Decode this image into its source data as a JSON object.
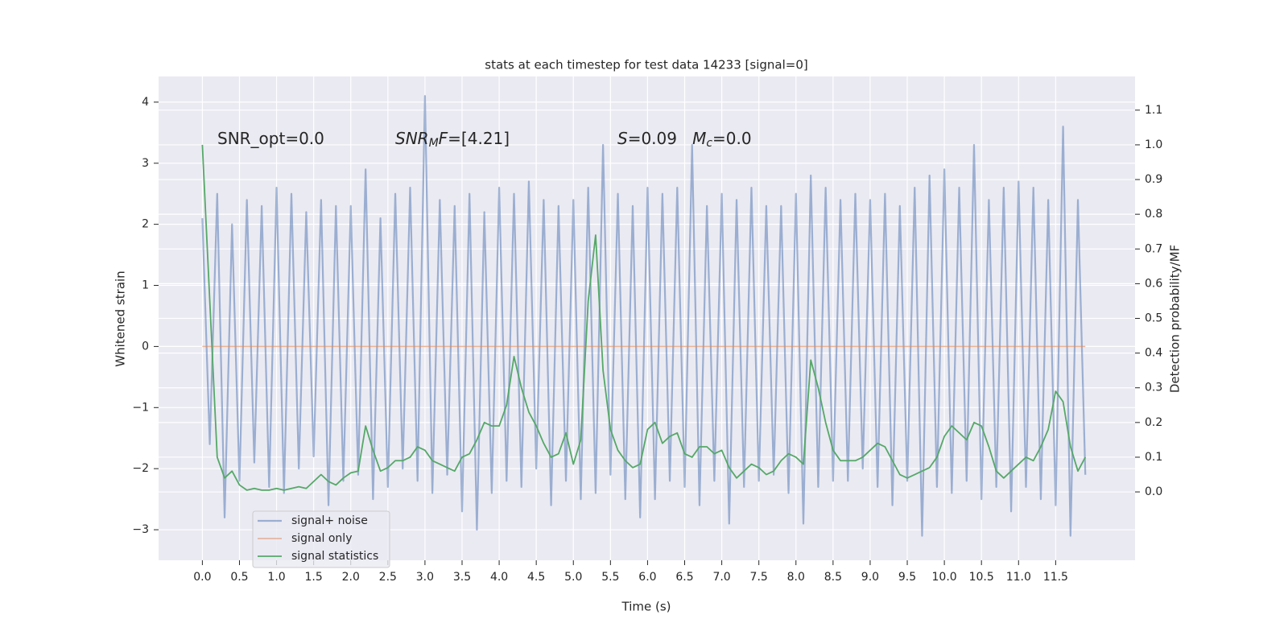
{
  "chart_data": {
    "type": "line",
    "title": "stats at each timestep for test data 14233 [signal=0]",
    "x_label": "Time (s)",
    "y_label": "Whitened strain",
    "y2_label": "Detection probability/MF",
    "annotations": [
      {
        "segments": [
          {
            "text": "SNR_opt=0.0",
            "style": "normal"
          }
        ]
      },
      {
        "segments": [
          {
            "text": "SNR",
            "style": "italic"
          },
          {
            "text": "M",
            "style": "sub"
          },
          {
            "text": "F",
            "style": "italic"
          },
          {
            "text": "=[4.21]",
            "style": "normal"
          }
        ]
      },
      {
        "segments": [
          {
            "text": "S",
            "style": "italic"
          },
          {
            "text": "=0.09   ",
            "style": "normal"
          },
          {
            "text": "M",
            "style": "italic"
          },
          {
            "text": "c",
            "style": "sub"
          },
          {
            "text": "=0.0",
            "style": "normal"
          }
        ]
      }
    ],
    "x": [
      0,
      0.1,
      0.2,
      0.3,
      0.4,
      0.5,
      0.6,
      0.7,
      0.8,
      0.9,
      1,
      1.1,
      1.2,
      1.3,
      1.4,
      1.5,
      1.6,
      1.7,
      1.8,
      1.9,
      2,
      2.1,
      2.2,
      2.3,
      2.4,
      2.5,
      2.6,
      2.7,
      2.8,
      2.9,
      3,
      3.1,
      3.2,
      3.3,
      3.4,
      3.5,
      3.6,
      3.7,
      3.8,
      3.9,
      4,
      4.1,
      4.2,
      4.3,
      4.4,
      4.5,
      4.6,
      4.7,
      4.8,
      4.9,
      5,
      5.1,
      5.2,
      5.3,
      5.4,
      5.5,
      5.6,
      5.7,
      5.8,
      5.9,
      6,
      6.1,
      6.2,
      6.3,
      6.4,
      6.5,
      6.6,
      6.7,
      6.8,
      6.9,
      7,
      7.1,
      7.2,
      7.3,
      7.4,
      7.5,
      7.6,
      7.7,
      7.8,
      7.9,
      8,
      8.1,
      8.2,
      8.3,
      8.4,
      8.5,
      8.6,
      8.7,
      8.8,
      8.9,
      9,
      9.1,
      9.2,
      9.3,
      9.4,
      9.5,
      9.6,
      9.7,
      9.8,
      9.9,
      10,
      10.1,
      10.2,
      10.3,
      10.4,
      10.5,
      10.6,
      10.7,
      10.8,
      10.9,
      11,
      11.1,
      11.2,
      11.3,
      11.4,
      11.5,
      11.6,
      11.7,
      11.8,
      11.9
    ],
    "series": [
      {
        "name": "signal+ noise",
        "color": "#4c72b0",
        "axis": "y",
        "values": [
          2.1,
          -1.6,
          2.5,
          -2.8,
          2.0,
          -2.2,
          2.4,
          -1.9,
          2.3,
          -2.3,
          2.6,
          -2.4,
          2.5,
          -2.0,
          2.2,
          -1.8,
          2.4,
          -2.6,
          2.3,
          -2.2,
          2.3,
          -2.1,
          2.9,
          -2.5,
          2.1,
          -2.3,
          2.5,
          -2.0,
          2.6,
          -2.2,
          4.1,
          -2.4,
          2.4,
          -2.1,
          2.3,
          -2.7,
          2.5,
          -3.0,
          2.2,
          -2.4,
          2.6,
          -2.2,
          2.5,
          -2.3,
          2.7,
          -2.0,
          2.4,
          -2.6,
          2.3,
          -2.2,
          2.4,
          -2.5,
          2.6,
          -2.4,
          3.3,
          -2.1,
          2.5,
          -2.5,
          2.3,
          -2.8,
          2.6,
          -2.5,
          2.5,
          -2.2,
          2.6,
          -2.3,
          3.3,
          -2.6,
          2.3,
          -2.2,
          2.5,
          -2.9,
          2.4,
          -2.3,
          2.6,
          -2.2,
          2.3,
          -2.1,
          2.3,
          -2.4,
          2.5,
          -2.9,
          2.8,
          -2.3,
          2.6,
          -2.2,
          2.4,
          -2.2,
          2.5,
          -2.0,
          2.4,
          -2.3,
          2.5,
          -2.6,
          2.3,
          -2.2,
          2.6,
          -3.1,
          2.8,
          -2.3,
          2.9,
          -2.4,
          2.6,
          -2.2,
          3.3,
          -2.5,
          2.4,
          -2.3,
          2.6,
          -2.7,
          2.7,
          -2.3,
          2.6,
          -2.5,
          2.4,
          -2.6,
          3.6,
          -3.1,
          2.4,
          -2.1
        ]
      },
      {
        "name": "signal only",
        "color": "#dd8452",
        "axis": "y",
        "values": [
          0,
          0,
          0,
          0,
          0,
          0,
          0,
          0,
          0,
          0,
          0,
          0,
          0,
          0,
          0,
          0,
          0,
          0,
          0,
          0,
          0,
          0,
          0,
          0,
          0,
          0,
          0,
          0,
          0,
          0,
          0,
          0,
          0,
          0,
          0,
          0,
          0,
          0,
          0,
          0,
          0,
          0,
          0,
          0,
          0,
          0,
          0,
          0,
          0,
          0,
          0,
          0,
          0,
          0,
          0,
          0,
          0,
          0,
          0,
          0,
          0,
          0,
          0,
          0,
          0,
          0,
          0,
          0,
          0,
          0,
          0,
          0,
          0,
          0,
          0,
          0,
          0,
          0,
          0,
          0,
          0,
          0,
          0,
          0,
          0,
          0,
          0,
          0,
          0,
          0,
          0,
          0,
          0,
          0,
          0,
          0,
          0,
          0,
          0,
          0,
          0,
          0,
          0,
          0,
          0,
          0,
          0,
          0,
          0,
          0,
          0,
          0,
          0,
          0,
          0,
          0,
          0,
          0,
          0,
          0
        ]
      },
      {
        "name": "signal statistics",
        "color": "#55a868",
        "axis": "y2",
        "values": [
          1.0,
          0.55,
          0.1,
          0.04,
          0.06,
          0.02,
          0.005,
          0.01,
          0.005,
          0.005,
          0.01,
          0.005,
          0.01,
          0.015,
          0.01,
          0.03,
          0.05,
          0.03,
          0.02,
          0.04,
          0.055,
          0.06,
          0.19,
          0.12,
          0.06,
          0.07,
          0.09,
          0.09,
          0.1,
          0.13,
          0.12,
          0.09,
          0.08,
          0.07,
          0.06,
          0.1,
          0.11,
          0.15,
          0.2,
          0.19,
          0.19,
          0.25,
          0.39,
          0.3,
          0.23,
          0.19,
          0.14,
          0.1,
          0.11,
          0.17,
          0.08,
          0.15,
          0.55,
          0.74,
          0.35,
          0.18,
          0.12,
          0.09,
          0.07,
          0.08,
          0.18,
          0.2,
          0.14,
          0.16,
          0.17,
          0.11,
          0.1,
          0.13,
          0.13,
          0.11,
          0.12,
          0.07,
          0.04,
          0.06,
          0.08,
          0.07,
          0.05,
          0.06,
          0.09,
          0.11,
          0.1,
          0.08,
          0.38,
          0.3,
          0.2,
          0.12,
          0.09,
          0.09,
          0.09,
          0.1,
          0.12,
          0.14,
          0.13,
          0.09,
          0.05,
          0.04,
          0.05,
          0.06,
          0.07,
          0.1,
          0.16,
          0.19,
          0.17,
          0.15,
          0.2,
          0.19,
          0.13,
          0.06,
          0.04,
          0.06,
          0.08,
          0.1,
          0.09,
          0.13,
          0.18,
          0.29,
          0.26,
          0.13,
          0.06,
          0.1
        ]
      }
    ],
    "xlim": [
      -0.59,
      12.57
    ],
    "xticks": [
      {
        "value": 0,
        "label": "0.0"
      },
      0.5,
      {
        "value": 1,
        "label": "1.0"
      },
      1.5,
      {
        "value": 2,
        "label": "2.0"
      },
      2.5,
      {
        "value": 3,
        "label": "3.0"
      },
      3.5,
      {
        "value": 4,
        "label": "4.0"
      },
      4.5,
      {
        "value": 5,
        "label": "5.0"
      },
      5.5,
      {
        "value": 6,
        "label": "6.0"
      },
      6.5,
      {
        "value": 7,
        "label": "7.0"
      },
      7.5,
      {
        "value": 8,
        "label": "8.0"
      },
      8.5,
      {
        "value": 9,
        "label": "9.0"
      },
      9.5,
      {
        "value": 10,
        "label": "10.0"
      },
      10.5,
      {
        "value": 11,
        "label": "11.0"
      },
      11.5
    ],
    "ylim": [
      -3.5,
      4.42
    ],
    "yticks": [
      {
        "value": -3,
        "label": "−3"
      },
      {
        "value": -2,
        "label": "−2"
      },
      {
        "value": -1,
        "label": "−1"
      },
      0,
      1,
      2,
      3,
      4
    ],
    "y2lim": [
      -0.197,
      1.197
    ],
    "y2ticks": [
      {
        "value": 0,
        "label": "0.0"
      },
      0.1,
      0.2,
      0.3,
      0.4,
      0.5,
      0.6,
      0.7,
      0.8,
      0.9,
      {
        "value": 1,
        "label": "1.0"
      },
      1.1
    ],
    "grid": true,
    "legend": "lower left"
  }
}
